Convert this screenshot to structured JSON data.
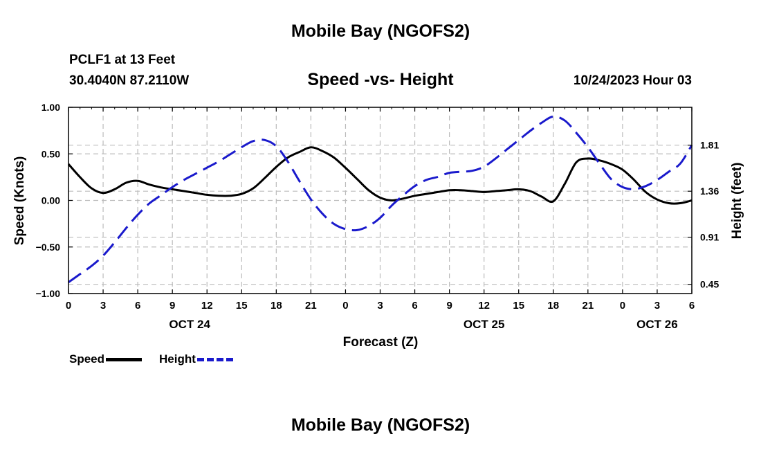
{
  "header": {
    "title": "Mobile Bay (NGOFS2)",
    "station": "PCLF1 at 13 Feet",
    "coords": "30.4040N  87.2110W",
    "subtitle": "Speed -vs- Height",
    "timestamp": "10/24/2023 Hour 03"
  },
  "footer": {
    "title": "Mobile Bay (NGOFS2)"
  },
  "colors": {
    "speed": "#000000",
    "height": "#1a1acc",
    "grid": "#bbbbbb"
  },
  "chart_data": {
    "type": "line",
    "xlabel": "Forecast (Z)",
    "ylabel_left": "Speed (Knots)",
    "ylabel_right": "Height (feet)",
    "x_range_hours": [
      0,
      54
    ],
    "x_ticks": [
      {
        "h": 0,
        "label": "0"
      },
      {
        "h": 3,
        "label": "3"
      },
      {
        "h": 6,
        "label": "6"
      },
      {
        "h": 9,
        "label": "9"
      },
      {
        "h": 12,
        "label": "12"
      },
      {
        "h": 15,
        "label": "15"
      },
      {
        "h": 18,
        "label": "18"
      },
      {
        "h": 21,
        "label": "21"
      },
      {
        "h": 24,
        "label": "0"
      },
      {
        "h": 27,
        "label": "3"
      },
      {
        "h": 30,
        "label": "6"
      },
      {
        "h": 33,
        "label": "9"
      },
      {
        "h": 36,
        "label": "12"
      },
      {
        "h": 39,
        "label": "15"
      },
      {
        "h": 42,
        "label": "18"
      },
      {
        "h": 45,
        "label": "21"
      },
      {
        "h": 48,
        "label": "0"
      },
      {
        "h": 51,
        "label": "3"
      },
      {
        "h": 54,
        "label": "6"
      }
    ],
    "date_labels": [
      {
        "h": 10.5,
        "label": "OCT 24"
      },
      {
        "h": 36,
        "label": "OCT 25"
      },
      {
        "h": 51,
        "label": "OCT 26"
      }
    ],
    "y_left_range": [
      -1.0,
      1.0
    ],
    "y_left_ticks": [
      "1.00",
      "0.50",
      "0.00",
      "−0.50",
      "−1.00"
    ],
    "y_right_range": [
      0.36,
      2.18
    ],
    "y_right_ticks": [
      "1.81",
      "1.36",
      "0.91",
      "0.45"
    ],
    "y_right_tick_values": [
      1.81,
      1.36,
      0.91,
      0.45
    ],
    "grid": true,
    "legend": [
      {
        "name": "Speed",
        "style": "solid"
      },
      {
        "name": "Height",
        "style": "dashed"
      }
    ],
    "series": [
      {
        "name": "Speed",
        "axis": "left",
        "x": [
          0,
          1,
          2,
          3,
          4,
          5,
          6,
          7,
          8,
          9,
          10,
          11,
          12,
          13,
          14,
          15,
          16,
          17,
          18,
          19,
          20,
          21,
          22,
          23,
          24,
          25,
          26,
          27,
          28,
          29,
          30,
          31,
          32,
          33,
          34,
          35,
          36,
          37,
          38,
          39,
          40,
          41,
          42,
          43,
          44,
          45,
          46,
          47,
          48,
          49,
          50,
          51,
          52,
          53,
          54
        ],
        "values": [
          0.39,
          0.25,
          0.13,
          0.08,
          0.12,
          0.19,
          0.21,
          0.17,
          0.14,
          0.12,
          0.1,
          0.08,
          0.06,
          0.05,
          0.05,
          0.07,
          0.13,
          0.24,
          0.36,
          0.46,
          0.52,
          0.57,
          0.53,
          0.46,
          0.35,
          0.23,
          0.11,
          0.03,
          0.0,
          0.02,
          0.05,
          0.07,
          0.09,
          0.11,
          0.11,
          0.1,
          0.09,
          0.1,
          0.11,
          0.12,
          0.1,
          0.04,
          -0.01,
          0.18,
          0.41,
          0.45,
          0.43,
          0.39,
          0.33,
          0.22,
          0.09,
          0.01,
          -0.03,
          -0.03,
          0.0
        ]
      },
      {
        "name": "Height",
        "axis": "right",
        "x": [
          0,
          1,
          2,
          3,
          4,
          5,
          6,
          7,
          8,
          9,
          10,
          11,
          12,
          13,
          14,
          15,
          16,
          17,
          18,
          19,
          20,
          21,
          22,
          23,
          24,
          25,
          26,
          27,
          28,
          29,
          30,
          31,
          32,
          33,
          34,
          35,
          36,
          37,
          38,
          39,
          40,
          41,
          42,
          43,
          44,
          45,
          46,
          47,
          48,
          49,
          50,
          51,
          52,
          53,
          54
        ],
        "values": [
          0.47,
          0.55,
          0.63,
          0.73,
          0.86,
          1.0,
          1.13,
          1.24,
          1.32,
          1.4,
          1.47,
          1.53,
          1.59,
          1.65,
          1.72,
          1.79,
          1.85,
          1.86,
          1.8,
          1.65,
          1.46,
          1.28,
          1.14,
          1.04,
          0.99,
          0.98,
          1.02,
          1.1,
          1.22,
          1.32,
          1.41,
          1.47,
          1.5,
          1.54,
          1.55,
          1.56,
          1.6,
          1.68,
          1.77,
          1.86,
          1.95,
          2.03,
          2.09,
          2.05,
          1.93,
          1.79,
          1.63,
          1.48,
          1.4,
          1.38,
          1.41,
          1.47,
          1.55,
          1.63,
          1.81
        ]
      }
    ]
  }
}
